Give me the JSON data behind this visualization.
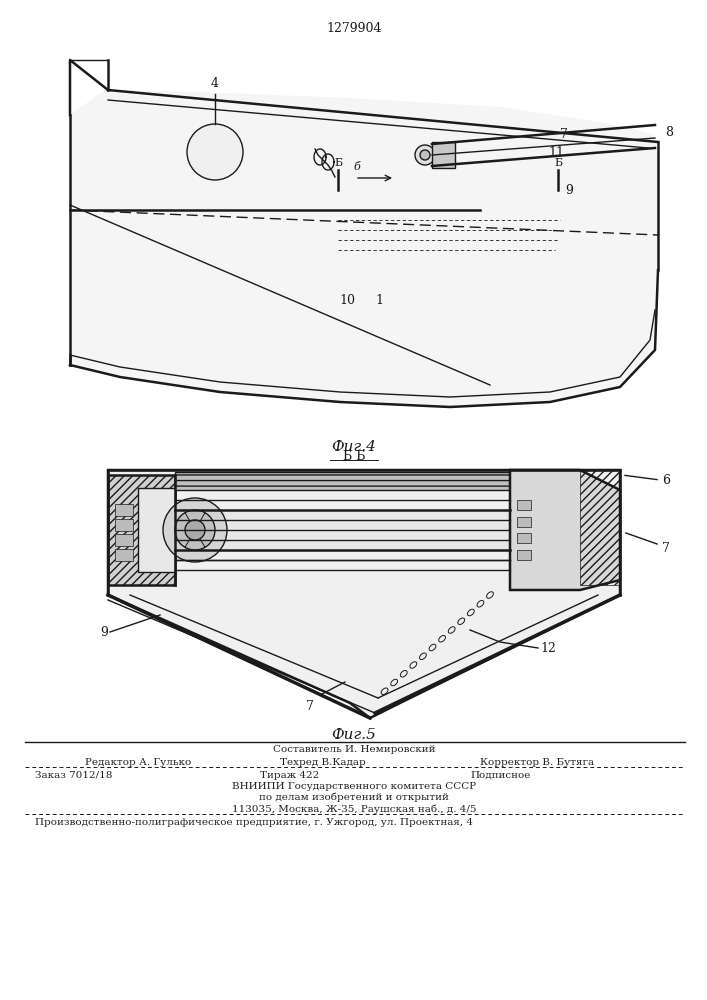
{
  "patent_number": "1279904",
  "fig4_label": "Фиг.4",
  "fig5_label": "Фиг.5",
  "section_label": "Б Б",
  "bg_color": "#ffffff",
  "line_color": "#1a1a1a",
  "footer_line1": "Составитель И. Немировский",
  "footer_line2": "Редактор А. Гулько",
  "footer_line2b": "Техред В.Кадар",
  "footer_line2c": "Корректор В. Бутяга",
  "footer_line3": "Заказ 7012/18",
  "footer_line3b": "Тираж 422",
  "footer_line3c": "Подписное",
  "footer_line4": "ВНИИПИ Государственного комитета СССР",
  "footer_line5": "по делам изобретений и открытий",
  "footer_line6": "113035, Москва, Ж-35, Раушская наб., д. 4/5",
  "footer_line7": "Производственно-полиграфическое предприятие, г. Ужгород, ул. Проектная, 4"
}
